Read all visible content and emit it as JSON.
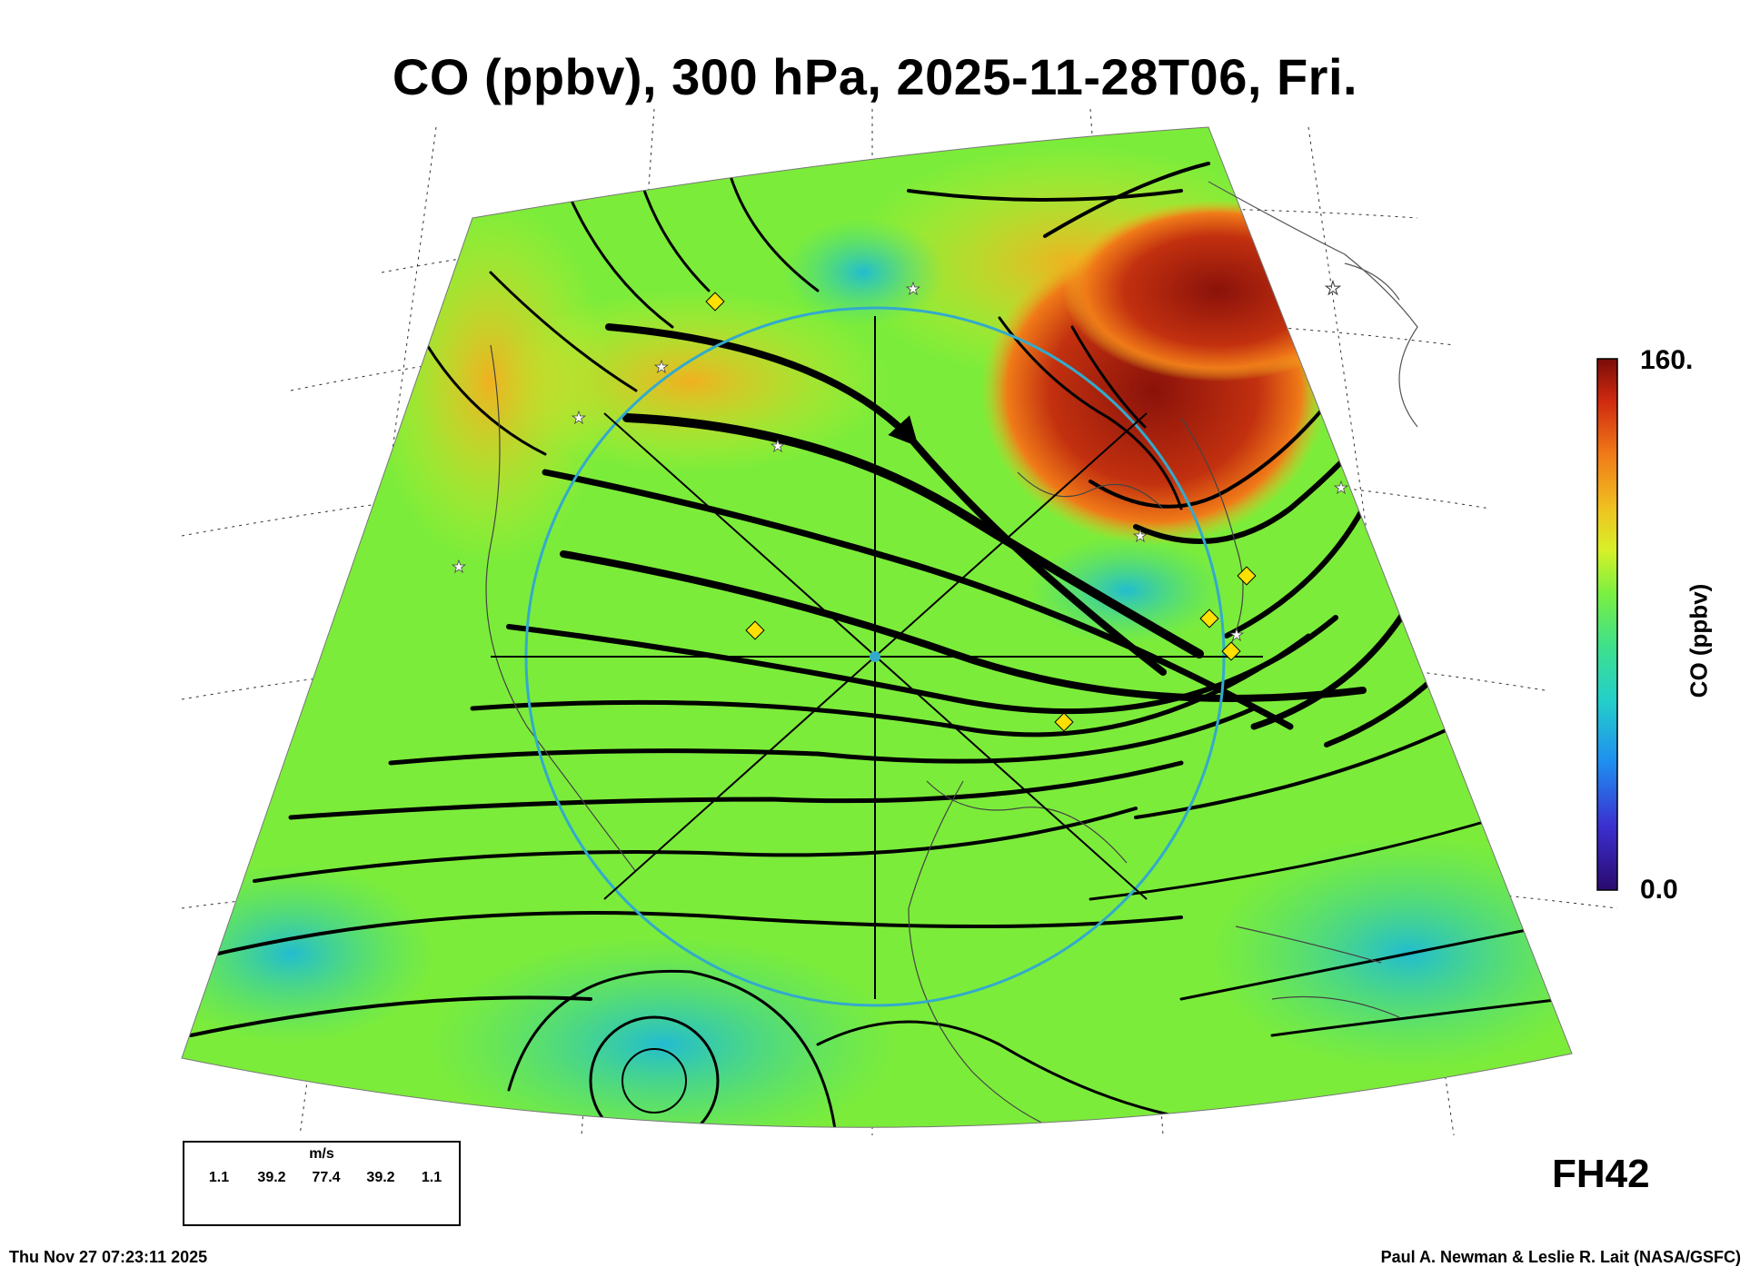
{
  "title": "CO (ppbv), 300 hPa, 2025-11-28T06, Fri.",
  "colorbar": {
    "max_label": "160.",
    "min_label": "0.0",
    "title": "CO (ppbv)",
    "colors": [
      "#2a0a6e",
      "#3b2fd0",
      "#1f8ef0",
      "#24d0c8",
      "#3fe08a",
      "#7cf040",
      "#d8f028",
      "#f0c020",
      "#f07a18",
      "#d02a10",
      "#7a0c08"
    ]
  },
  "forecast_hour": "FH42",
  "wind_legend": {
    "unit": "m/s",
    "values": [
      "1.1",
      "39.2",
      "77.4",
      "39.2",
      "1.1"
    ]
  },
  "footer": {
    "timestamp": "Thu Nov 27 07:23:11 2025",
    "credit": "Paul A. Newman & Leslie R. Lait (NASA/GSFC)"
  },
  "map": {
    "background_color": "#7cec3a",
    "high_co_region_color": "#9a1a0c",
    "marker_colors": {
      "diamond": "#ffe000",
      "star": "#ffffff",
      "circle": "#33aacc"
    }
  }
}
